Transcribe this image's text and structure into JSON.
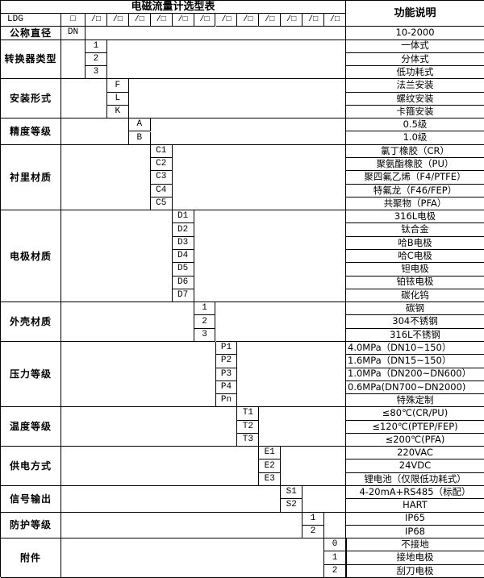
{
  "title": "电磁流量计选型表",
  "desc_header": "功能说明",
  "model_row": {
    "label": "LDG",
    "box": "□",
    "slot": "/□",
    "slot_count": 12
  },
  "groups": [
    {
      "label": "公称直径",
      "col": "dn",
      "rows": [
        {
          "code": "DN",
          "desc": "10-2000"
        }
      ]
    },
    {
      "label": "转换器类型",
      "col": 0,
      "rows": [
        {
          "code": "1",
          "desc": "一体式"
        },
        {
          "code": "2",
          "desc": "分体式"
        },
        {
          "code": "3",
          "desc": "低功耗式"
        }
      ]
    },
    {
      "label": "安装形式",
      "col": 1,
      "rows": [
        {
          "code": "F",
          "desc": "法兰安装"
        },
        {
          "code": "L",
          "desc": "螺纹安装"
        },
        {
          "code": "K",
          "desc": "卡箍安装"
        }
      ]
    },
    {
      "label": "精度等级",
      "col": 2,
      "rows": [
        {
          "code": "A",
          "desc": "0.5级"
        },
        {
          "code": "B",
          "desc": "1.0级"
        }
      ]
    },
    {
      "label": "衬里材质",
      "col": 3,
      "rows": [
        {
          "code": "C1",
          "desc": "氯丁橡胶（CR）"
        },
        {
          "code": "C2",
          "desc": "聚氨酯橡胶（PU）"
        },
        {
          "code": "C3",
          "desc": "聚四氟乙烯（F4/PTFE）"
        },
        {
          "code": "C4",
          "desc": "特氟龙（F46/FEP）"
        },
        {
          "code": "C5",
          "desc": "共聚物（PFA）"
        }
      ]
    },
    {
      "label": "电极材质",
      "col": 4,
      "rows": [
        {
          "code": "D1",
          "desc": "316L电极"
        },
        {
          "code": "D2",
          "desc": "钛合金"
        },
        {
          "code": "D3",
          "desc": "哈B电极"
        },
        {
          "code": "D4",
          "desc": "哈C电极"
        },
        {
          "code": "D5",
          "desc": "钽电极"
        },
        {
          "code": "D6",
          "desc": "铂铱电极"
        },
        {
          "code": "D7",
          "desc": "碳化钨"
        }
      ]
    },
    {
      "label": "外壳材质",
      "col": 5,
      "rows": [
        {
          "code": "1",
          "desc": "碳钢"
        },
        {
          "code": "2",
          "desc": "304不锈钢"
        },
        {
          "code": "3",
          "desc": "316L不锈钢"
        }
      ]
    },
    {
      "label": "压力等级",
      "col": 6,
      "rows": [
        {
          "code": "P1",
          "desc": "4.0MPa（DN10~150）",
          "align": "left"
        },
        {
          "code": "P2",
          "desc": "1.6MPa（DN15~150）",
          "align": "left"
        },
        {
          "code": "P3",
          "desc": "1.0MPa（DN200~DN600）",
          "align": "left"
        },
        {
          "code": "P4",
          "desc": "0.6MPa(DN700~DN2000)",
          "align": "left"
        },
        {
          "code": "Pn",
          "desc": "特殊定制"
        }
      ]
    },
    {
      "label": "温度等级",
      "col": 7,
      "rows": [
        {
          "code": "T1",
          "desc": "≤80℃(CR/PU)"
        },
        {
          "code": "T2",
          "desc": "≤120℃(PTEP/FEP)"
        },
        {
          "code": "T3",
          "desc": "≤200℃(PFA)"
        }
      ]
    },
    {
      "label": "供电方式",
      "col": 8,
      "rows": [
        {
          "code": "E1",
          "desc": "220VAC"
        },
        {
          "code": "E2",
          "desc": "24VDC"
        },
        {
          "code": "E3",
          "desc": "锂电池（仅限低功耗式）"
        }
      ]
    },
    {
      "label": "信号输出",
      "col": 9,
      "rows": [
        {
          "code": "S1",
          "desc": "4-20mA+RS485（标配）"
        },
        {
          "code": "S2",
          "desc": "HART"
        }
      ]
    },
    {
      "label": "防护等级",
      "col": 10,
      "rows": [
        {
          "code": "1",
          "desc": "IP65"
        },
        {
          "code": "2",
          "desc": "IP68"
        }
      ]
    },
    {
      "label": "附件",
      "col": 11,
      "rows": [
        {
          "code": "0",
          "desc": "不接地"
        },
        {
          "code": "1",
          "desc": "接地电极"
        },
        {
          "code": "2",
          "desc": "刮刀电极"
        }
      ]
    }
  ],
  "colors": {
    "border": "#000000",
    "text": "#000000",
    "bg": "#ffffff"
  }
}
